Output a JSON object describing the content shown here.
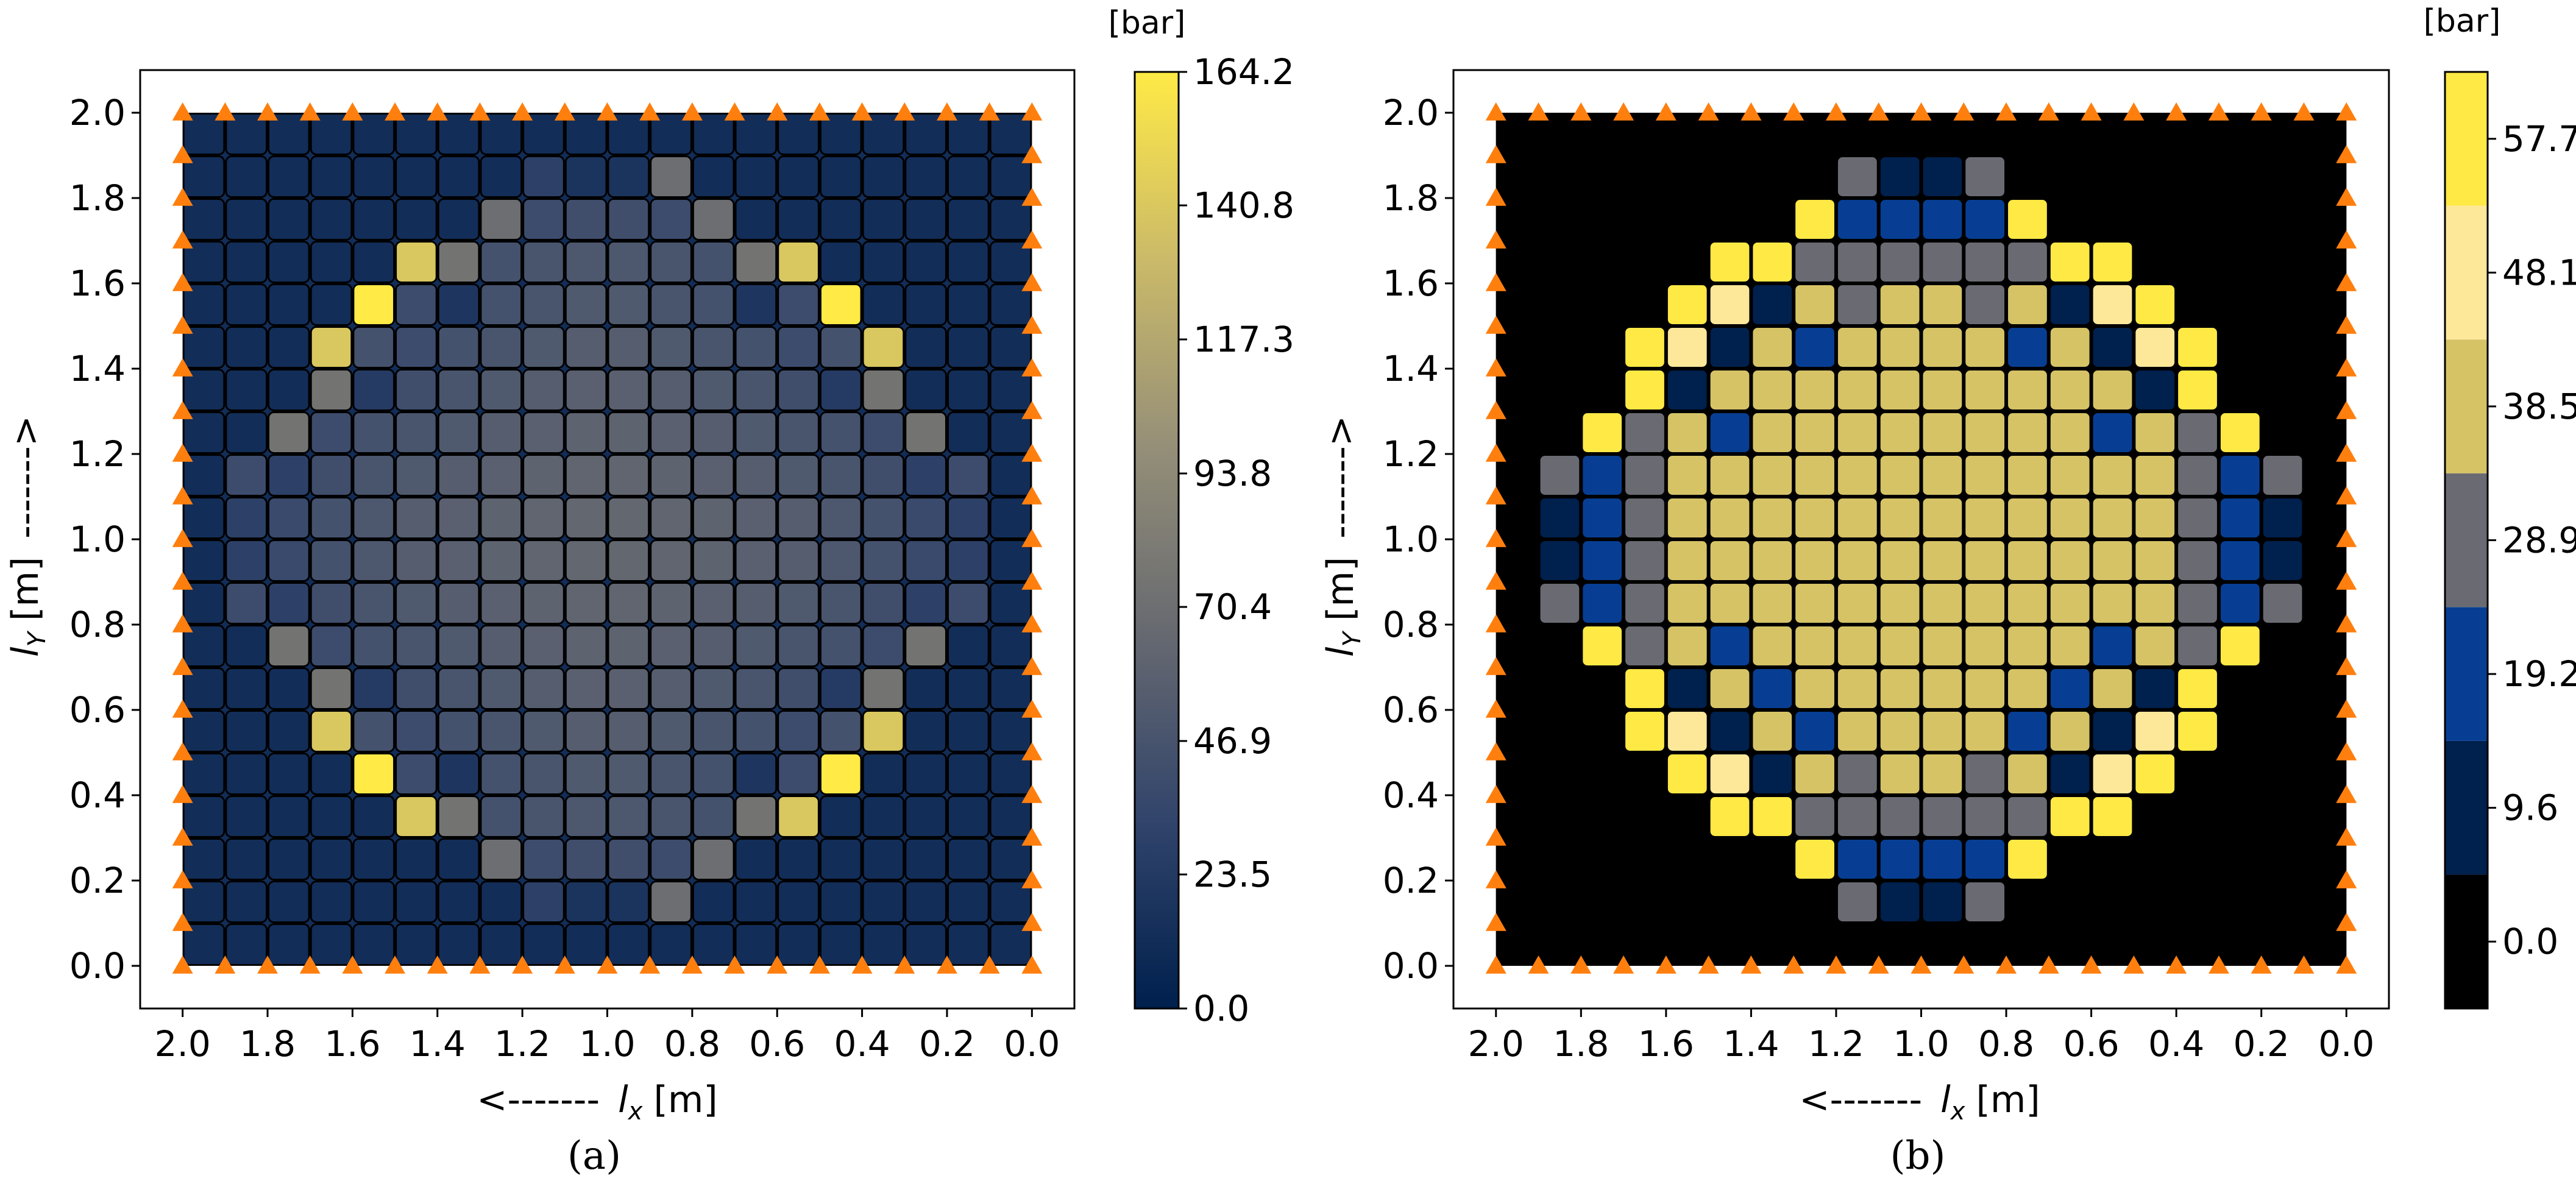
{
  "chart_data": [
    {
      "type": "heatmap",
      "panel": "a",
      "caption": "(a)",
      "xlabel_prefix": "<-------",
      "xlabel_var": "l",
      "xlabel_sub": "x",
      "xlabel_unit": "[m]",
      "ylabel_var": "l",
      "ylabel_sub": "Y",
      "ylabel_unit": "[m]",
      "ylabel_suffix": "------->",
      "x_reversed": true,
      "xlim": [
        2.1,
        -0.1
      ],
      "ylim": [
        -0.1,
        2.1
      ],
      "xticks": [
        "2.0",
        "1.8",
        "1.6",
        "1.4",
        "1.2",
        "1.0",
        "0.8",
        "0.6",
        "0.4",
        "0.2",
        "0.0"
      ],
      "yticks": [
        "0.0",
        "0.2",
        "0.4",
        "0.6",
        "0.8",
        "1.0",
        "1.2",
        "1.4",
        "1.6",
        "1.8",
        "2.0"
      ],
      "grid_n": 20,
      "grid_extent": [
        0,
        2
      ],
      "value_range": [
        0,
        164.2
      ],
      "colorbar": {
        "type": "continuous",
        "unit": "[bar]",
        "ticks": [
          "164.2",
          "140.8",
          "117.3",
          "93.8",
          "70.4",
          "46.9",
          "23.5",
          "0.0"
        ],
        "tick_values": [
          164.2,
          140.8,
          117.3,
          93.8,
          70.4,
          46.9,
          23.5,
          0.0
        ],
        "colormap": [
          "#00204d",
          "#31446b",
          "#666970",
          "#958f78",
          "#cbba69",
          "#ffea46"
        ]
      },
      "support_markers": "boundary nodes (triangles)",
      "support_color": "#ff7f0e",
      "cells": [
        [
          12,
          12,
          12,
          12,
          12,
          12,
          12,
          12,
          12,
          12,
          12,
          12,
          12,
          12,
          12,
          12,
          12,
          12,
          12,
          12
        ],
        [
          12,
          12,
          12,
          12,
          12,
          12,
          12,
          12,
          30,
          18,
          18,
          70,
          12,
          12,
          12,
          12,
          12,
          12,
          12,
          12
        ],
        [
          12,
          12,
          12,
          12,
          12,
          12,
          12,
          70,
          40,
          42,
          42,
          40,
          70,
          12,
          12,
          12,
          12,
          12,
          12,
          12
        ],
        [
          12,
          12,
          12,
          12,
          12,
          140,
          75,
          45,
          48,
          50,
          50,
          48,
          45,
          75,
          140,
          12,
          12,
          12,
          12,
          12
        ],
        [
          12,
          12,
          12,
          12,
          164,
          40,
          20,
          45,
          48,
          52,
          52,
          48,
          45,
          20,
          40,
          164,
          12,
          12,
          12,
          12
        ],
        [
          12,
          12,
          12,
          140,
          45,
          40,
          45,
          48,
          52,
          55,
          55,
          52,
          48,
          45,
          40,
          45,
          140,
          12,
          12,
          12
        ],
        [
          12,
          12,
          12,
          75,
          25,
          42,
          48,
          52,
          55,
          58,
          58,
          55,
          52,
          48,
          42,
          25,
          75,
          12,
          12,
          12
        ],
        [
          12,
          12,
          75,
          40,
          45,
          48,
          52,
          55,
          58,
          60,
          60,
          58,
          55,
          52,
          48,
          45,
          40,
          75,
          12,
          12
        ],
        [
          12,
          40,
          30,
          42,
          48,
          52,
          55,
          58,
          60,
          62,
          62,
          60,
          58,
          55,
          52,
          48,
          42,
          30,
          40,
          12
        ],
        [
          12,
          30,
          38,
          45,
          50,
          55,
          58,
          60,
          62,
          64,
          64,
          62,
          60,
          58,
          55,
          50,
          45,
          38,
          30,
          12
        ],
        [
          12,
          30,
          38,
          45,
          50,
          55,
          58,
          60,
          62,
          64,
          64,
          62,
          60,
          58,
          55,
          50,
          45,
          38,
          30,
          12
        ],
        [
          12,
          40,
          30,
          42,
          48,
          52,
          55,
          58,
          60,
          62,
          62,
          60,
          58,
          55,
          52,
          48,
          42,
          30,
          40,
          12
        ],
        [
          12,
          12,
          75,
          40,
          45,
          48,
          52,
          55,
          58,
          60,
          60,
          58,
          55,
          52,
          48,
          45,
          40,
          75,
          12,
          12
        ],
        [
          12,
          12,
          12,
          75,
          25,
          42,
          48,
          52,
          55,
          58,
          58,
          55,
          52,
          48,
          42,
          25,
          75,
          12,
          12,
          12
        ],
        [
          12,
          12,
          12,
          140,
          45,
          40,
          45,
          48,
          52,
          55,
          55,
          52,
          48,
          45,
          40,
          45,
          140,
          12,
          12,
          12
        ],
        [
          12,
          12,
          12,
          12,
          164,
          40,
          20,
          45,
          48,
          52,
          52,
          48,
          45,
          20,
          40,
          164,
          12,
          12,
          12,
          12
        ],
        [
          12,
          12,
          12,
          12,
          12,
          140,
          75,
          45,
          48,
          50,
          50,
          48,
          45,
          75,
          140,
          12,
          12,
          12,
          12,
          12
        ],
        [
          12,
          12,
          12,
          12,
          12,
          12,
          12,
          70,
          40,
          42,
          42,
          40,
          70,
          12,
          12,
          12,
          12,
          12,
          12,
          12
        ],
        [
          12,
          12,
          12,
          12,
          12,
          12,
          12,
          12,
          30,
          18,
          18,
          70,
          12,
          12,
          12,
          12,
          12,
          12,
          12,
          12
        ],
        [
          12,
          12,
          12,
          12,
          12,
          12,
          12,
          12,
          12,
          12,
          12,
          12,
          12,
          12,
          12,
          12,
          12,
          12,
          12,
          12
        ]
      ]
    },
    {
      "type": "heatmap",
      "panel": "b",
      "caption": "(b)",
      "xlabel_prefix": "<-------",
      "xlabel_var": "l",
      "xlabel_sub": "x",
      "xlabel_unit": "[m]",
      "ylabel_var": "l",
      "ylabel_sub": "Y",
      "ylabel_unit": "[m]",
      "ylabel_suffix": "------->",
      "x_reversed": true,
      "xlim": [
        2.1,
        -0.1
      ],
      "ylim": [
        -0.1,
        2.1
      ],
      "xticks": [
        "2.0",
        "1.8",
        "1.6",
        "1.4",
        "1.2",
        "1.0",
        "0.8",
        "0.6",
        "0.4",
        "0.2",
        "0.0"
      ],
      "yticks": [
        "0.0",
        "0.2",
        "0.4",
        "0.6",
        "0.8",
        "1.0",
        "1.2",
        "1.4",
        "1.6",
        "1.8",
        "2.0"
      ],
      "grid_n": 20,
      "grid_extent": [
        0,
        2
      ],
      "colorbar": {
        "type": "discrete",
        "unit": "[bar]",
        "ticks": [
          "57.7",
          "48.1",
          "38.5",
          "28.9",
          "19.2",
          "9.6",
          "0.0"
        ],
        "levels": [
          0.0,
          9.6,
          19.2,
          28.9,
          38.5,
          48.1,
          57.7
        ],
        "colors": [
          "#000000",
          "#00204d",
          "#073e93",
          "#6a6b72",
          "#d6c366",
          "#fde89a",
          "#ffe945"
        ]
      },
      "support_markers": "boundary nodes (triangles)",
      "support_color": "#ff7f0e",
      "levels_grid": [
        [
          0,
          0,
          0,
          0,
          0,
          0,
          0,
          0,
          0,
          0,
          0,
          0,
          0,
          0,
          0,
          0,
          0,
          0,
          0,
          0
        ],
        [
          0,
          0,
          0,
          0,
          0,
          0,
          0,
          0,
          3,
          1,
          1,
          3,
          0,
          0,
          0,
          0,
          0,
          0,
          0,
          0
        ],
        [
          0,
          0,
          0,
          0,
          0,
          0,
          0,
          6,
          2,
          2,
          2,
          2,
          6,
          0,
          0,
          0,
          0,
          0,
          0,
          0
        ],
        [
          0,
          0,
          0,
          0,
          0,
          6,
          6,
          3,
          3,
          3,
          3,
          3,
          3,
          6,
          6,
          0,
          0,
          0,
          0,
          0
        ],
        [
          0,
          0,
          0,
          0,
          6,
          5,
          1,
          4,
          3,
          4,
          4,
          3,
          4,
          1,
          5,
          6,
          0,
          0,
          0,
          0
        ],
        [
          0,
          0,
          0,
          6,
          5,
          1,
          4,
          2,
          4,
          4,
          4,
          4,
          2,
          4,
          1,
          5,
          6,
          0,
          0,
          0
        ],
        [
          0,
          0,
          0,
          6,
          1,
          4,
          4,
          4,
          4,
          4,
          4,
          4,
          4,
          4,
          4,
          1,
          6,
          0,
          0,
          0
        ],
        [
          0,
          0,
          6,
          3,
          4,
          2,
          4,
          4,
          4,
          4,
          4,
          4,
          4,
          4,
          2,
          4,
          3,
          6,
          0,
          0
        ],
        [
          0,
          3,
          2,
          3,
          4,
          4,
          4,
          4,
          4,
          4,
          4,
          4,
          4,
          4,
          4,
          4,
          3,
          2,
          3,
          0
        ],
        [
          0,
          1,
          2,
          3,
          4,
          4,
          4,
          4,
          4,
          4,
          4,
          4,
          4,
          4,
          4,
          4,
          3,
          2,
          1,
          0
        ],
        [
          0,
          1,
          2,
          3,
          4,
          4,
          4,
          4,
          4,
          4,
          4,
          4,
          4,
          4,
          4,
          4,
          3,
          2,
          1,
          0
        ],
        [
          0,
          3,
          2,
          3,
          4,
          4,
          4,
          4,
          4,
          4,
          4,
          4,
          4,
          4,
          4,
          4,
          3,
          2,
          3,
          0
        ],
        [
          0,
          0,
          6,
          3,
          4,
          2,
          4,
          4,
          4,
          4,
          4,
          4,
          4,
          4,
          2,
          4,
          3,
          6,
          0,
          0
        ],
        [
          0,
          0,
          0,
          6,
          1,
          4,
          2,
          4,
          4,
          4,
          4,
          4,
          4,
          2,
          4,
          1,
          6,
          0,
          0,
          0
        ],
        [
          0,
          0,
          0,
          6,
          5,
          1,
          4,
          2,
          4,
          4,
          4,
          4,
          2,
          4,
          1,
          5,
          6,
          0,
          0,
          0
        ],
        [
          0,
          0,
          0,
          0,
          6,
          5,
          1,
          4,
          3,
          4,
          4,
          3,
          4,
          1,
          5,
          6,
          0,
          0,
          0,
          0
        ],
        [
          0,
          0,
          0,
          0,
          0,
          6,
          6,
          3,
          3,
          3,
          3,
          3,
          3,
          6,
          6,
          0,
          0,
          0,
          0,
          0
        ],
        [
          0,
          0,
          0,
          0,
          0,
          0,
          0,
          6,
          2,
          2,
          2,
          2,
          6,
          0,
          0,
          0,
          0,
          0,
          0,
          0
        ],
        [
          0,
          0,
          0,
          0,
          0,
          0,
          0,
          0,
          3,
          1,
          1,
          3,
          0,
          0,
          0,
          0,
          0,
          0,
          0,
          0
        ],
        [
          0,
          0,
          0,
          0,
          0,
          0,
          0,
          0,
          0,
          0,
          0,
          0,
          0,
          0,
          0,
          0,
          0,
          0,
          0,
          0
        ]
      ]
    }
  ]
}
